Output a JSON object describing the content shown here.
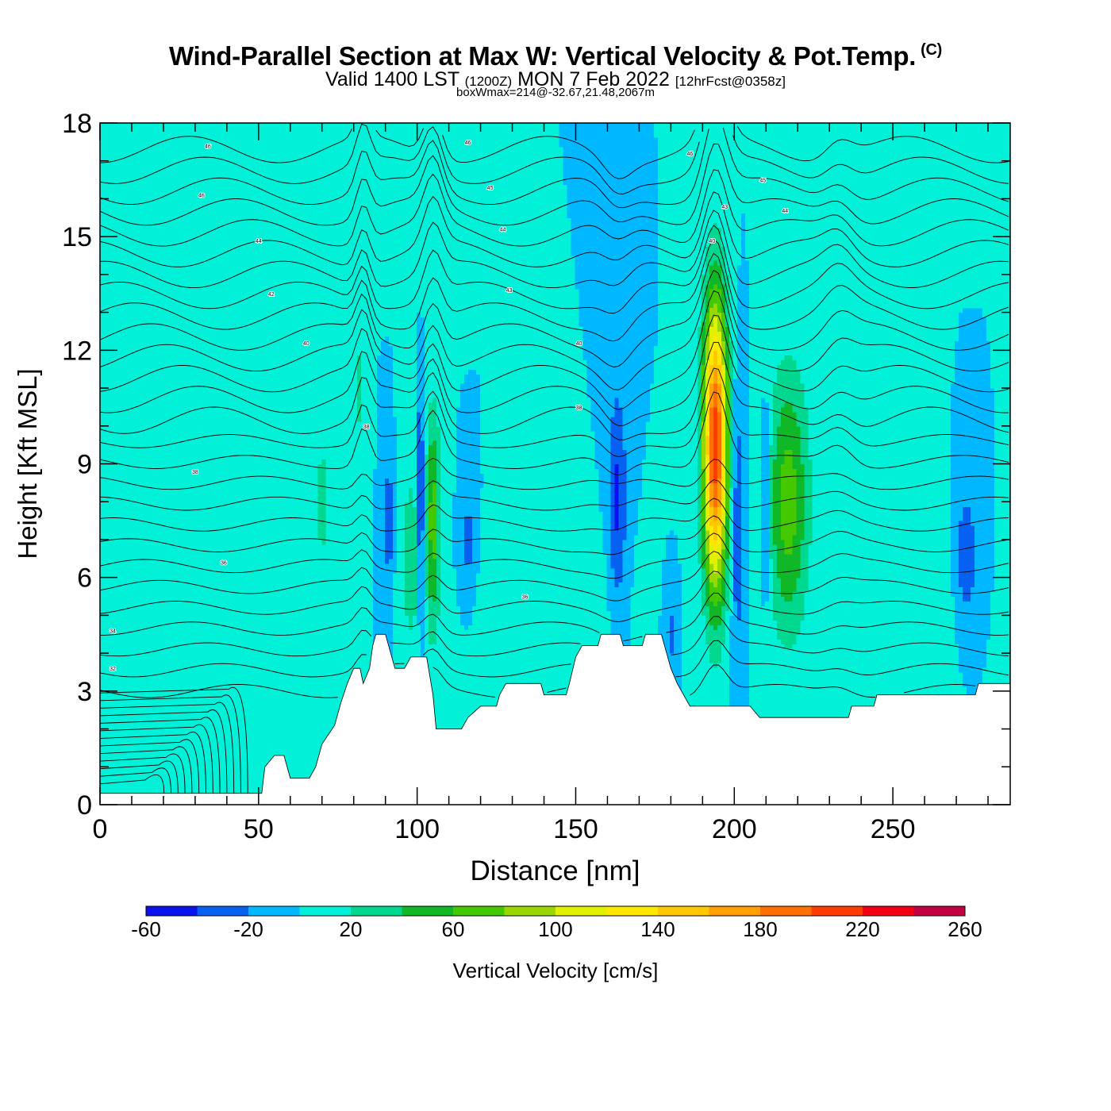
{
  "header": {
    "title": "Wind-Parallel Section at Max W: Vertical Velocity & Pot.Temp.",
    "copyright": "(C)",
    "valid_prefix": "Valid 1400 LST",
    "valid_utc": "(1200Z)",
    "valid_date": "MON 7 Feb 2022",
    "forecast": "[12hrFcst@0358z]",
    "boxwmax": "boxWmax=214@-32.67,21.48,2067m"
  },
  "chart_data": {
    "type": "heatmap",
    "xlabel": "Distance [nm]",
    "ylabel": "Height [Kft MSL]",
    "xlim": [
      0,
      287
    ],
    "ylim": [
      0,
      18
    ],
    "x_ticks": [
      0,
      50,
      100,
      150,
      200,
      250
    ],
    "y_ticks": [
      0,
      3,
      6,
      9,
      12,
      15,
      18
    ],
    "colorbar": {
      "label": "Vertical Velocity [cm/s]",
      "bounds": [
        -60,
        -40,
        -20,
        0,
        20,
        40,
        60,
        80,
        100,
        120,
        140,
        160,
        180,
        200,
        220,
        240,
        260
      ],
      "tick_labels": [
        -60,
        -20,
        20,
        60,
        100,
        140,
        180,
        220,
        260
      ],
      "colors": [
        "#0a10ee",
        "#0660f0",
        "#00b8ff",
        "#00f0d8",
        "#00d890",
        "#10b828",
        "#44c800",
        "#98d800",
        "#e0f000",
        "#ffe800",
        "#ffc800",
        "#ffa000",
        "#ff7000",
        "#ff3c00",
        "#f00010",
        "#c00040"
      ]
    },
    "background_w": 0,
    "terrain": [
      [
        0,
        0.3
      ],
      [
        10,
        0.3
      ],
      [
        20,
        0.3
      ],
      [
        30,
        0.3
      ],
      [
        40,
        0.3
      ],
      [
        51,
        0.3
      ],
      [
        52,
        1.0
      ],
      [
        55,
        1.3
      ],
      [
        58,
        1.3
      ],
      [
        60,
        0.7
      ],
      [
        66,
        0.7
      ],
      [
        68,
        1.0
      ],
      [
        70,
        1.6
      ],
      [
        74,
        2.1
      ],
      [
        76,
        2.7
      ],
      [
        78,
        3.2
      ],
      [
        80,
        3.6
      ],
      [
        82,
        3.6
      ],
      [
        83,
        3.2
      ],
      [
        85,
        3.6
      ],
      [
        86,
        4.2
      ],
      [
        87,
        4.5
      ],
      [
        90,
        4.5
      ],
      [
        91,
        4.2
      ],
      [
        93,
        3.6
      ],
      [
        96,
        3.6
      ],
      [
        98,
        3.9
      ],
      [
        103,
        3.9
      ],
      [
        105,
        2.9
      ],
      [
        106,
        2.0
      ],
      [
        114,
        2.0
      ],
      [
        116,
        2.3
      ],
      [
        120,
        2.6
      ],
      [
        125,
        2.6
      ],
      [
        126,
        2.9
      ],
      [
        128,
        3.2
      ],
      [
        139,
        3.2
      ],
      [
        140,
        2.9
      ],
      [
        145,
        2.9
      ],
      [
        147,
        2.9
      ],
      [
        148,
        3.2
      ],
      [
        150,
        3.9
      ],
      [
        152,
        4.2
      ],
      [
        157,
        4.2
      ],
      [
        158,
        4.5
      ],
      [
        164,
        4.5
      ],
      [
        165,
        4.2
      ],
      [
        171,
        4.2
      ],
      [
        172,
        4.5
      ],
      [
        177,
        4.5
      ],
      [
        178,
        4.2
      ],
      [
        180,
        3.6
      ],
      [
        182,
        3.2
      ],
      [
        184,
        2.9
      ],
      [
        186,
        2.6
      ],
      [
        205,
        2.6
      ],
      [
        208,
        2.3
      ],
      [
        236,
        2.3
      ],
      [
        237,
        2.6
      ],
      [
        244,
        2.6
      ],
      [
        245,
        2.9
      ],
      [
        276,
        2.9
      ],
      [
        277,
        3.2
      ],
      [
        287,
        3.2
      ]
    ],
    "updrafts": [
      {
        "x": 194,
        "z": 9.5,
        "peak": 214,
        "sx": 3.8,
        "sz": 3.8
      },
      {
        "x": 217,
        "z": 8.0,
        "peak": 70,
        "sx": 6.5,
        "sz": 3.5
      },
      {
        "x": 105,
        "z": 7.5,
        "peak": 70,
        "sx": 2.2,
        "sz": 3.0
      },
      {
        "x": 98,
        "z": 6.5,
        "peak": 35,
        "sx": 3.0,
        "sz": 2.5
      },
      {
        "x": 70,
        "z": 8.0,
        "peak": 30,
        "sx": 2.0,
        "sz": 2.0
      },
      {
        "x": 82,
        "z": 11.0,
        "peak": 25,
        "sx": 1.5,
        "sz": 2.0
      },
      {
        "x": 44,
        "z": 9.0,
        "peak": 18,
        "sx": 6.0,
        "sz": 3.5
      },
      {
        "x": 150,
        "z": 5.5,
        "peak": 18,
        "sx": 12.0,
        "sz": 1.8
      },
      {
        "x": 130,
        "z": 4.0,
        "peak": 16,
        "sx": 8.0,
        "sz": 1.5
      },
      {
        "x": 232,
        "z": 13.0,
        "peak": 18,
        "sx": 6.0,
        "sz": 2.5
      },
      {
        "x": 262,
        "z": 5.5,
        "peak": 15,
        "sx": 10.0,
        "sz": 2.5
      },
      {
        "x": 33,
        "z": 4.0,
        "peak": 16,
        "sx": 3.0,
        "sz": 3.0
      },
      {
        "x": 13,
        "z": 13.0,
        "peak": 14,
        "sx": 2.5,
        "sz": 2.0
      },
      {
        "x": 102,
        "z": 15.5,
        "peak": 14,
        "sx": 5.0,
        "sz": 1.8
      },
      {
        "x": 270,
        "z": 17.2,
        "peak": 16,
        "sx": 9.0,
        "sz": 1.2
      },
      {
        "x": 248,
        "z": 16.5,
        "peak": 14,
        "sx": 3.0,
        "sz": 2.0
      }
    ],
    "downdrafts": [
      {
        "x": 101,
        "z": 8.0,
        "peak": -60,
        "sx": 1.0,
        "sz": 2.8
      },
      {
        "x": 91,
        "z": 7.5,
        "peak": -40,
        "sx": 1.3,
        "sz": 1.6
      },
      {
        "x": 116,
        "z": 7.0,
        "peak": -30,
        "sx": 1.6,
        "sz": 1.2
      },
      {
        "x": 163,
        "z": 8.0,
        "peak": -45,
        "sx": 3.0,
        "sz": 3.0
      },
      {
        "x": 201,
        "z": 7.5,
        "peak": -40,
        "sx": 2.0,
        "sz": 3.5
      },
      {
        "x": 210,
        "z": 8.0,
        "peak": -30,
        "sx": 1.5,
        "sz": 3.0
      },
      {
        "x": 273,
        "z": 6.5,
        "peak": -35,
        "sx": 4.0,
        "sz": 2.0
      },
      {
        "x": 180,
        "z": 4.5,
        "peak": -28,
        "sx": 1.5,
        "sz": 1.0
      }
    ],
    "theta_labels": [
      {
        "x": 34,
        "z": 17.4,
        "text": "46"
      },
      {
        "x": 116,
        "z": 17.5,
        "text": "46"
      },
      {
        "x": 186,
        "z": 17.2,
        "text": "46"
      },
      {
        "x": 32,
        "z": 16.1,
        "text": "46"
      },
      {
        "x": 123,
        "z": 16.3,
        "text": "45"
      },
      {
        "x": 209,
        "z": 16.5,
        "text": "45"
      },
      {
        "x": 50,
        "z": 14.9,
        "text": "44"
      },
      {
        "x": 127,
        "z": 15.2,
        "text": "44"
      },
      {
        "x": 216,
        "z": 15.7,
        "text": "44"
      },
      {
        "x": 54,
        "z": 13.5,
        "text": "42"
      },
      {
        "x": 129,
        "z": 13.6,
        "text": "43"
      },
      {
        "x": 197,
        "z": 15.8,
        "text": "43"
      },
      {
        "x": 65,
        "z": 12.2,
        "text": "40"
      },
      {
        "x": 151,
        "z": 12.2,
        "text": "40"
      },
      {
        "x": 193,
        "z": 14.9,
        "text": "40"
      },
      {
        "x": 84,
        "z": 10.0,
        "text": "38"
      },
      {
        "x": 151,
        "z": 10.5,
        "text": "38"
      },
      {
        "x": 30,
        "z": 8.8,
        "text": "38"
      },
      {
        "x": 39,
        "z": 6.4,
        "text": "36"
      },
      {
        "x": 134,
        "z": 5.5,
        "text": "36"
      },
      {
        "x": 4,
        "z": 4.6,
        "text": "34"
      },
      {
        "x": 4,
        "z": 3.6,
        "text": "32"
      }
    ]
  }
}
